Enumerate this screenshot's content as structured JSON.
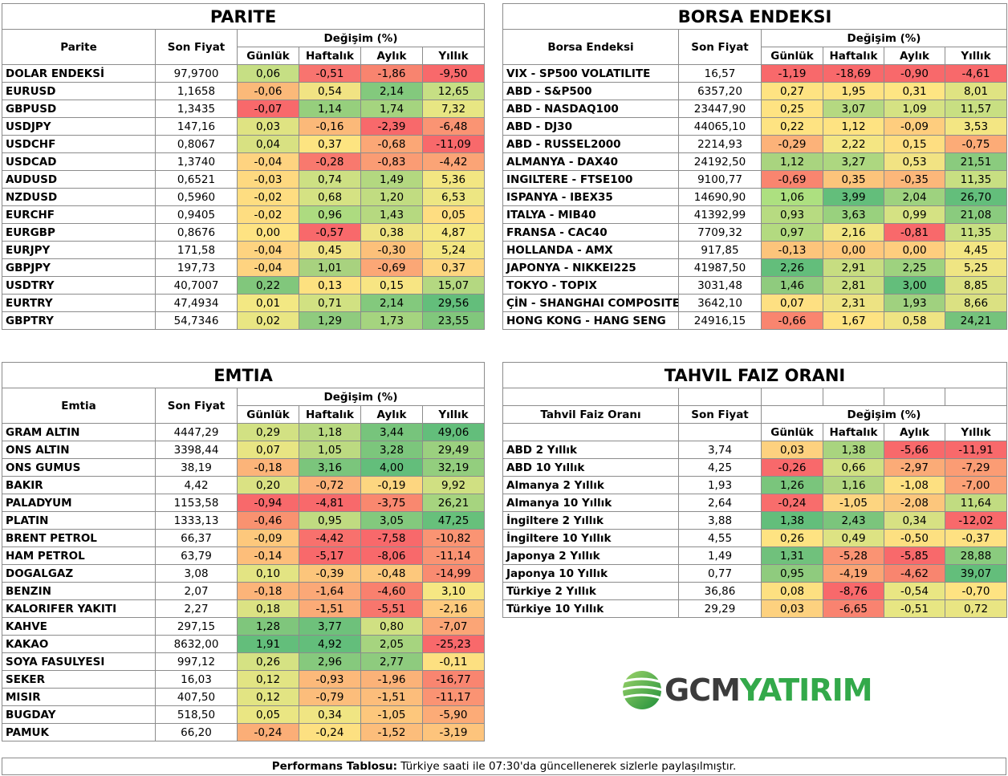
{
  "parite": {
    "title": "PARITE",
    "col_name": "Parite",
    "col_price": "Son Fiyat",
    "col_change": "Değişim (%)",
    "periods": [
      "Günlük",
      "Haftalık",
      "Aylık",
      "Yıllık"
    ],
    "rows": [
      {
        "name": "DOLAR ENDEKSİ",
        "price": "97,9700",
        "values": [
          "0,06",
          "-0,51",
          "-1,86",
          "-9,50"
        ],
        "colors": [
          "#c6df84",
          "#f8746f",
          "#f8846f",
          "#f8696b"
        ]
      },
      {
        "name": "EURUSD",
        "price": "1,1658",
        "values": [
          "-0,06",
          "0,54",
          "2,14",
          "12,65"
        ],
        "colors": [
          "#fbb979",
          "#f1e383",
          "#83c97d",
          "#c6df84"
        ]
      },
      {
        "name": "GBPUSD",
        "price": "1,3435",
        "values": [
          "-0,07",
          "1,14",
          "1,74",
          "7,32"
        ],
        "colors": [
          "#f8696b",
          "#96cf7d",
          "#a5d47f",
          "#e7e683"
        ]
      },
      {
        "name": "USDJPY",
        "price": "147,16",
        "values": [
          "0,03",
          "-0,16",
          "-2,39",
          "-6,48"
        ],
        "colors": [
          "#dfe382",
          "#fbb979",
          "#f8696b",
          "#fa9473"
        ]
      },
      {
        "name": "USDCHF",
        "price": "0,8067",
        "values": [
          "0,04",
          "0,37",
          "-0,68",
          "-11,09"
        ],
        "colors": [
          "#d8e182",
          "#fde481",
          "#fba776",
          "#f8696b"
        ]
      },
      {
        "name": "USDCAD",
        "price": "1,3740",
        "values": [
          "-0,04",
          "-0,28",
          "-0,83",
          "-4,42"
        ],
        "colors": [
          "#fed380",
          "#f8796e",
          "#fa9c74",
          "#fba476"
        ]
      },
      {
        "name": "AUDUSD",
        "price": "0,6521",
        "values": [
          "-0,03",
          "0,74",
          "1,49",
          "5,36"
        ],
        "colors": [
          "#fed980",
          "#cde083",
          "#b3d880",
          "#f3e682"
        ]
      },
      {
        "name": "NZDUSD",
        "price": "0,5960",
        "values": [
          "-0,02",
          "0,68",
          "1,20",
          "6,53"
        ],
        "colors": [
          "#fedd81",
          "#d5e283",
          "#c1dc81",
          "#ede683"
        ]
      },
      {
        "name": "EURCHF",
        "price": "0,9405",
        "values": [
          "-0,02",
          "0,96",
          "1,43",
          "0,05"
        ],
        "colors": [
          "#fedd81",
          "#addb80",
          "#b6d980",
          "#fedd81"
        ]
      },
      {
        "name": "EURGBP",
        "price": "0,8676",
        "values": [
          "0,00",
          "-0,57",
          "0,38",
          "4,87"
        ],
        "colors": [
          "#fee382",
          "#f8696b",
          "#eee482",
          "#f6e882"
        ]
      },
      {
        "name": "EURJPY",
        "price": "171,58",
        "values": [
          "-0,04",
          "0,45",
          "-0,30",
          "5,24"
        ],
        "colors": [
          "#fed380",
          "#f1e383",
          "#fcc07a",
          "#f3e682"
        ]
      },
      {
        "name": "GBPJPY",
        "price": "197,73",
        "values": [
          "-0,04",
          "1,01",
          "-0,69",
          "0,37"
        ],
        "colors": [
          "#fed380",
          "#a8d27f",
          "#fba776",
          "#fdd680"
        ]
      },
      {
        "name": "USDTRY",
        "price": "40,7007",
        "values": [
          "0,22",
          "0,13",
          "0,15",
          "15,07"
        ],
        "colors": [
          "#81c77c",
          "#fde180",
          "#f7e583",
          "#b4d881"
        ]
      },
      {
        "name": "EURTRY",
        "price": "47,4934",
        "values": [
          "0,01",
          "0,71",
          "2,14",
          "29,56"
        ],
        "colors": [
          "#f3e883",
          "#d1e182",
          "#83c97d",
          "#63be7b"
        ]
      },
      {
        "name": "GBPTRY",
        "price": "54,7346",
        "values": [
          "0,02",
          "1,29",
          "1,73",
          "23,55"
        ],
        "colors": [
          "#e9e683",
          "#8fcb7e",
          "#a5d47f",
          "#81c77c"
        ]
      }
    ]
  },
  "borsa": {
    "title": "BORSA ENDEKSI",
    "col_name": "Borsa Endeksi",
    "col_price": "Son Fiyat",
    "col_change": "Değişim (%)",
    "periods": [
      "Günlük",
      "Haftalık",
      "Aylık",
      "Yıllık"
    ],
    "rows": [
      {
        "name": "VIX  - SP500 VOLATILITE",
        "price": "16,57",
        "values": [
          "-1,19",
          "-18,69",
          "-0,90",
          "-4,61"
        ],
        "colors": [
          "#f8696b",
          "#f8696b",
          "#f8696b",
          "#f8696b"
        ]
      },
      {
        "name": "ABD - S&P500",
        "price": "6357,20",
        "values": [
          "0,27",
          "1,95",
          "0,31",
          "8,01"
        ],
        "colors": [
          "#fee382",
          "#fee282",
          "#fee583",
          "#dfe382"
        ]
      },
      {
        "name": "ABD - NASDAQ100",
        "price": "23447,90",
        "values": [
          "0,25",
          "3,07",
          "1,09",
          "11,57"
        ],
        "colors": [
          "#fee382",
          "#b5d981",
          "#d5e283",
          "#c8df82"
        ]
      },
      {
        "name": "ABD - DJ30",
        "price": "44065,10",
        "values": [
          "0,22",
          "1,12",
          "-0,09",
          "3,53"
        ],
        "colors": [
          "#fee382",
          "#fee382",
          "#fecd7e",
          "#f3e683"
        ]
      },
      {
        "name": "ABD - RUSSEL2000",
        "price": "2214,93",
        "values": [
          "-0,29",
          "2,22",
          "0,15",
          "-0,75"
        ],
        "colors": [
          "#fcb279",
          "#f4e683",
          "#fede81",
          "#fcab77"
        ]
      },
      {
        "name": "ALMANYA - DAX40",
        "price": "24192,50",
        "values": [
          "1,12",
          "3,27",
          "0,53",
          "21,51"
        ],
        "colors": [
          "#a9d47f",
          "#add780",
          "#f1e383",
          "#8acb7e"
        ]
      },
      {
        "name": "INGILTERE - FTSE100",
        "price": "9100,77",
        "values": [
          "-0,69",
          "0,35",
          "-0,35",
          "11,35"
        ],
        "colors": [
          "#f9856f",
          "#fcc47b",
          "#fcb77a",
          "#c8df82"
        ]
      },
      {
        "name": "ISPANYA - IBEX35",
        "price": "14690,90",
        "values": [
          "1,06",
          "3,99",
          "2,04",
          "26,70"
        ],
        "colors": [
          "#ade080",
          "#63be7b",
          "#9ed27f",
          "#63be7b"
        ]
      },
      {
        "name": "ITALYA - MIB40",
        "price": "41392,99",
        "values": [
          "0,93",
          "3,63",
          "0,99",
          "21,08"
        ],
        "colors": [
          "#b7db81",
          "#99d17e",
          "#d5e283",
          "#8acb7e"
        ]
      },
      {
        "name": "FRANSA - CAC40",
        "price": "7709,32",
        "values": [
          "0,97",
          "2,16",
          "-0,81",
          "11,35"
        ],
        "colors": [
          "#b3da80",
          "#f1e583",
          "#f8696b",
          "#c8df82"
        ]
      },
      {
        "name": "HOLLANDA - AMX",
        "price": "917,85",
        "values": [
          "-0,13",
          "0,00",
          "0,00",
          "4,45"
        ],
        "colors": [
          "#fcc47b",
          "#fec87c",
          "#fecd7e",
          "#f3e683"
        ]
      },
      {
        "name": "JAPONYA - NIKKEI225",
        "price": "41987,50",
        "values": [
          "2,26",
          "2,91",
          "2,25",
          "5,25"
        ],
        "colors": [
          "#63be7b",
          "#c7dd81",
          "#9ed27f",
          "#efe583"
        ]
      },
      {
        "name": "TOKYO - TOPIX",
        "price": "3031,48",
        "values": [
          "1,46",
          "2,81",
          "3,00",
          "8,85"
        ],
        "colors": [
          "#8fcb7e",
          "#cbde82",
          "#63be7b",
          "#dbe182"
        ]
      },
      {
        "name": "ÇİN - SHANGHAI COMPOSITE",
        "price": "3642,10",
        "values": [
          "0,07",
          "2,31",
          "1,93",
          "8,66"
        ],
        "colors": [
          "#fee082",
          "#ede383",
          "#a0d17f",
          "#dbe182"
        ]
      },
      {
        "name": "HONG KONG - HANG SENG",
        "price": "24916,15",
        "values": [
          "-0,66",
          "1,67",
          "0,58",
          "24,21"
        ],
        "colors": [
          "#f9856f",
          "#fee382",
          "#efe483",
          "#75c37c"
        ]
      }
    ]
  },
  "emtia": {
    "title": "EMTIA",
    "col_name": "Emtia",
    "col_price": "Son Fiyat",
    "col_change": "Değişim (%)",
    "periods": [
      "Günlük",
      "Haftalık",
      "Aylık",
      "Yıllık"
    ],
    "rows": [
      {
        "name": "GRAM ALTIN",
        "price": "4447,29",
        "values": [
          "0,29",
          "1,18",
          "3,44",
          "49,06"
        ],
        "colors": [
          "#d2e183",
          "#b8d981",
          "#77c47c",
          "#63be7b"
        ]
      },
      {
        "name": "ONS ALTIN",
        "price": "3398,44",
        "values": [
          "0,07",
          "1,05",
          "3,28",
          "29,49"
        ],
        "colors": [
          "#e8e583",
          "#bcda81",
          "#7cc67c",
          "#9bd07f"
        ]
      },
      {
        "name": "ONS GUMUS",
        "price": "38,19",
        "values": [
          "-0,18",
          "3,16",
          "4,00",
          "32,19"
        ],
        "colors": [
          "#fcb479",
          "#7bc57c",
          "#63be7b",
          "#93ce7e"
        ]
      },
      {
        "name": "BAKIR",
        "price": "4,42",
        "values": [
          "0,20",
          "-0,72",
          "-0,19",
          "9,92"
        ],
        "colors": [
          "#dae283",
          "#fcb279",
          "#fdd680",
          "#d0e082"
        ]
      },
      {
        "name": "PALADYUM",
        "price": "1153,58",
        "values": [
          "-0,94",
          "-4,81",
          "-3,75",
          "26,21"
        ],
        "colors": [
          "#f8696b",
          "#f8696b",
          "#f9886f",
          "#a6d47f"
        ]
      },
      {
        "name": "PLATIN",
        "price": "1333,13",
        "values": [
          "-0,46",
          "0,95",
          "3,05",
          "47,25"
        ],
        "colors": [
          "#f99270",
          "#c0db81",
          "#83c97d",
          "#67c07b"
        ]
      },
      {
        "name": "BRENT PETROL",
        "price": "66,37",
        "values": [
          "-0,09",
          "-4,42",
          "-7,58",
          "-10,82"
        ],
        "colors": [
          "#fdc87c",
          "#f8716d",
          "#f8696b",
          "#fa9473"
        ]
      },
      {
        "name": "HAM PETROL",
        "price": "63,79",
        "values": [
          "-0,14",
          "-5,17",
          "-8,06",
          "-11,14"
        ],
        "colors": [
          "#fdbe7a",
          "#f8696b",
          "#f8696b",
          "#fa9373"
        ]
      },
      {
        "name": "DOGALGAZ",
        "price": "3,08",
        "values": [
          "0,10",
          "-0,39",
          "-0,48",
          "-14,99"
        ],
        "colors": [
          "#e3e483",
          "#fcc57b",
          "#fdc87c",
          "#f98b71"
        ]
      },
      {
        "name": "BENZIN",
        "price": "2,07",
        "values": [
          "-0,18",
          "-1,64",
          "-4,60",
          "3,10"
        ],
        "colors": [
          "#fcb479",
          "#fba877",
          "#f9806e",
          "#f6e783"
        ]
      },
      {
        "name": "KALORIFER YAKITI",
        "price": "2,27",
        "values": [
          "0,18",
          "-1,51",
          "-5,51",
          "-2,16"
        ],
        "colors": [
          "#dbe283",
          "#fbab77",
          "#f8766d",
          "#fdca7d"
        ]
      },
      {
        "name": "KAHVE",
        "price": "297,15",
        "values": [
          "1,28",
          "3,77",
          "0,80",
          "-7,07"
        ],
        "colors": [
          "#7fc67c",
          "#6ec17b",
          "#d0e082",
          "#fba576"
        ]
      },
      {
        "name": "KAKAO",
        "price": "8632,00",
        "values": [
          "1,91",
          "4,92",
          "2,05",
          "-25,23"
        ],
        "colors": [
          "#63be7b",
          "#63be7b",
          "#a6d47f",
          "#f8696b"
        ]
      },
      {
        "name": "SOYA FASULYESI",
        "price": "997,12",
        "values": [
          "0,26",
          "2,96",
          "2,77",
          "-0,11"
        ],
        "colors": [
          "#d5e283",
          "#86c97d",
          "#8ecb7e",
          "#fde081"
        ]
      },
      {
        "name": "SEKER",
        "price": "16,03",
        "values": [
          "0,12",
          "-0,93",
          "-1,96",
          "-16,77"
        ],
        "colors": [
          "#e2e483",
          "#fcb97a",
          "#fbb278",
          "#f98570"
        ]
      },
      {
        "name": "MISIR",
        "price": "407,50",
        "values": [
          "0,12",
          "-0,79",
          "-1,51",
          "-11,17"
        ],
        "colors": [
          "#e2e483",
          "#fcbd7b",
          "#fcbd7b",
          "#fa9373"
        ]
      },
      {
        "name": "BUGDAY",
        "price": "518,50",
        "values": [
          "0,05",
          "0,34",
          "-1,05",
          "-5,90"
        ],
        "colors": [
          "#eae683",
          "#f0e583",
          "#fdc77c",
          "#fcab77"
        ]
      },
      {
        "name": "PAMUK",
        "price": "66,20",
        "values": [
          "-0,24",
          "-0,24",
          "-1,52",
          "-3,19"
        ],
        "colors": [
          "#fbae77",
          "#fde081",
          "#fcbd7b",
          "#fdc47c"
        ]
      }
    ]
  },
  "tahvil": {
    "title": "TAHVIL FAIZ ORANI",
    "col_name": "Tahvil Faiz Oranı",
    "col_price": "Son Fiyat",
    "col_change": "Değişim (%)",
    "periods": [
      "Günlük",
      "Haftalık",
      "Aylık",
      "Yıllık"
    ],
    "rows": [
      {
        "name": "ABD 2 Yıllık",
        "price": "3,74",
        "values": [
          "0,03",
          "1,38",
          "-5,66",
          "-11,91"
        ],
        "colors": [
          "#fdd17f",
          "#a9d47f",
          "#f8696b",
          "#f8696b"
        ]
      },
      {
        "name": "ABD 10 Yıllık",
        "price": "4,25",
        "values": [
          "-0,26",
          "0,66",
          "-2,97",
          "-7,29"
        ],
        "colors": [
          "#f8696b",
          "#d0e082",
          "#fbab77",
          "#fb9c74"
        ]
      },
      {
        "name": "Almanya 2 Yıllık",
        "price": "1,93",
        "values": [
          "1,26",
          "1,16",
          "-1,08",
          "-7,00"
        ],
        "colors": [
          "#7ac57c",
          "#b2d680",
          "#fde081",
          "#fba176"
        ]
      },
      {
        "name": "Almanya 10 Yıllık",
        "price": "2,64",
        "values": [
          "-0,24",
          "-1,05",
          "-2,08",
          "11,64"
        ],
        "colors": [
          "#f86d6c",
          "#fdd580",
          "#fcc67c",
          "#c1dc81"
        ]
      },
      {
        "name": "İngiltere 2 Yıllık",
        "price": "3,88",
        "values": [
          "1,38",
          "2,43",
          "0,34",
          "-12,02"
        ],
        "colors": [
          "#63be7b",
          "#7bc57c",
          "#d7e183",
          "#f8696b"
        ]
      },
      {
        "name": "İngiltere 10 Yıllık",
        "price": "4,55",
        "values": [
          "0,26",
          "0,49",
          "-0,50",
          "-0,37"
        ],
        "colors": [
          "#fee382",
          "#dde383",
          "#fde081",
          "#fee182"
        ]
      },
      {
        "name": "Japonya 2 Yıllık",
        "price": "1,49",
        "values": [
          "1,31",
          "-5,28",
          "-5,85",
          "28,88"
        ],
        "colors": [
          "#70c17c",
          "#fa9373",
          "#f8696b",
          "#8acb7e"
        ]
      },
      {
        "name": "Japonya 10 Yıllık",
        "price": "0,77",
        "values": [
          "0,95",
          "-4,19",
          "-4,62",
          "39,07"
        ],
        "colors": [
          "#8fcb7e",
          "#fba575",
          "#f8856f",
          "#63be7b"
        ]
      },
      {
        "name": "Türkiye 2 Yıllık",
        "price": "36,86",
        "values": [
          "0,08",
          "-8,76",
          "-0,54",
          "-0,70"
        ],
        "colors": [
          "#fde081",
          "#f8696b",
          "#e9e683",
          "#fee382"
        ]
      },
      {
        "name": "Türkiye 10 Yıllık",
        "price": "29,29",
        "values": [
          "0,03",
          "-6,65",
          "-0,51",
          "0,72"
        ],
        "colors": [
          "#fdd17f",
          "#f98370",
          "#e7e683",
          "#e9e583"
        ]
      }
    ]
  },
  "logo": {
    "part1": "GCM",
    "part2": "YATIRIM"
  },
  "footer": {
    "bold": "Performans Tablosu:",
    "text": " Türkiye saati ile 07:30'da güncellenerek sizlerle paylaşılmıştır."
  }
}
